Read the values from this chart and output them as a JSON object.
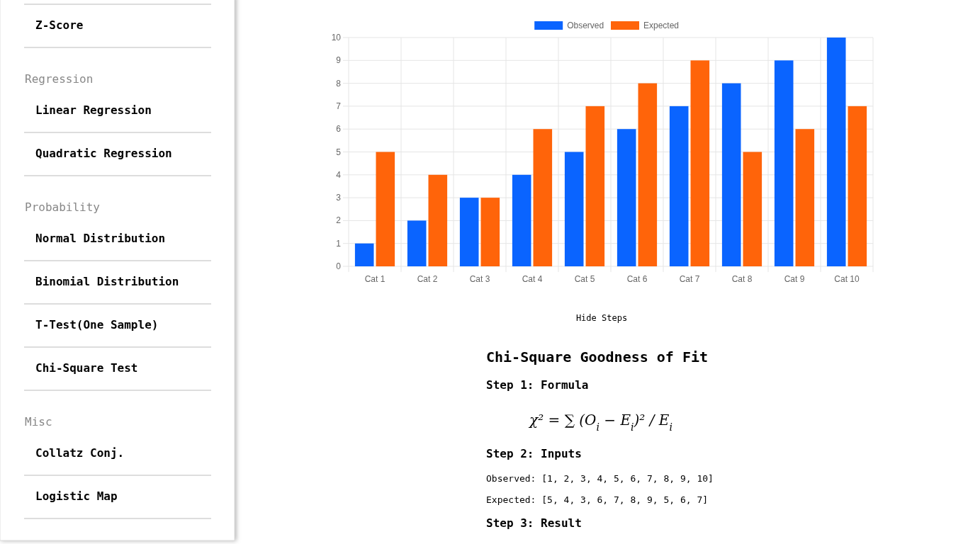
{
  "chart_data": {
    "type": "bar",
    "categories": [
      "Cat 1",
      "Cat 2",
      "Cat 3",
      "Cat 4",
      "Cat 5",
      "Cat 6",
      "Cat 7",
      "Cat 8",
      "Cat 9",
      "Cat 10"
    ],
    "series": [
      {
        "name": "Observed",
        "color": "#0a64ff",
        "values": [
          1,
          2,
          3,
          4,
          5,
          6,
          7,
          8,
          9,
          10
        ]
      },
      {
        "name": "Expected",
        "color": "#ff640a",
        "values": [
          5,
          4,
          3,
          6,
          7,
          8,
          9,
          5,
          6,
          7
        ]
      }
    ],
    "ylim": [
      0,
      10
    ],
    "yticks": [
      0,
      1,
      2,
      3,
      4,
      5,
      6,
      7,
      8,
      9,
      10
    ],
    "grid": true,
    "legend": "top",
    "annotations": [
      "Z-Score",
      "Regression",
      "Linear Regression",
      "Quadratic Regression",
      "Probability",
      "Normal Distribution",
      "Binomial Distribution",
      "T-Test(One Sample)",
      "Chi-Square Test",
      "Misc",
      "Collatz Conj.",
      "Logistic Map",
      "Hide Steps",
      "Chi-Square Goodness of Fit",
      "Step 1: Formula",
      "χ² = ∑ (O$_{i}$ − E$_{i}$)² / E$_{i}$",
      "Step 2: Inputs",
      "Observed: [1, 2, 3, 4, 5, 6, 7, 8, 9, 10]",
      "Expected: [5, 4, 3, 6, 7, 8, 9, 5, 6, 7]",
      "Step 3: Result"
    ]
  }
}
